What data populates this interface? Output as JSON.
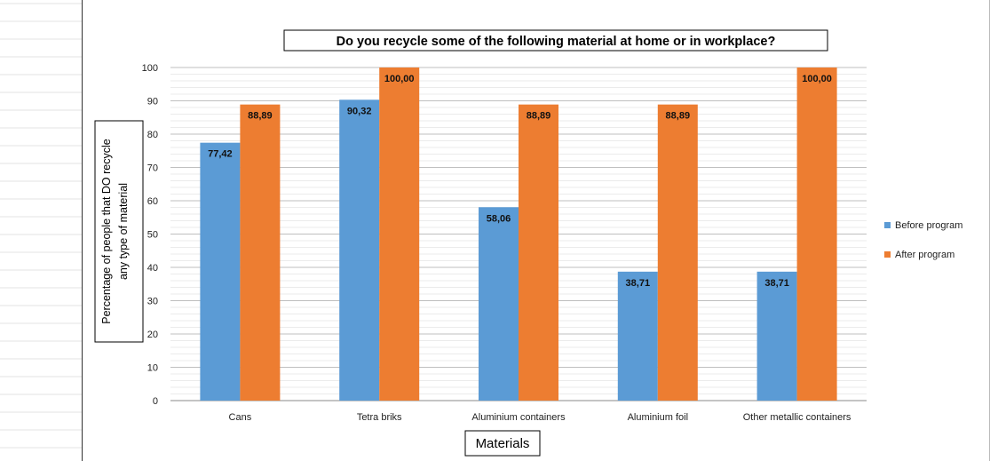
{
  "chart_data": {
    "type": "bar",
    "title": "Do you recycle some of the following material at home or in workplace?",
    "xlabel": "Materials",
    "ylabel_lines": [
      "Percentage of people that DO recycle",
      "any type of material"
    ],
    "categories": [
      "Cans",
      "Tetra briks",
      "Aluminium containers",
      "Aluminium foil",
      "Other metallic containers"
    ],
    "series": [
      {
        "name": "Before program",
        "color": "#5b9bd5",
        "values": [
          77.42,
          90.32,
          58.06,
          38.71,
          38.71
        ],
        "labels": [
          "77,42",
          "90,32",
          "58,06",
          "38,71",
          "38,71"
        ]
      },
      {
        "name": "After program",
        "color": "#ed7d31",
        "values": [
          88.89,
          100.0,
          88.89,
          88.89,
          100.0
        ],
        "labels": [
          "88,89",
          "100,00",
          "88,89",
          "88,89",
          "100,00"
        ]
      }
    ],
    "ylim": [
      0,
      100
    ],
    "yticks": [
      0,
      10,
      20,
      30,
      40,
      50,
      60,
      70,
      80,
      90,
      100
    ],
    "grid": true,
    "legend_position": "right"
  }
}
